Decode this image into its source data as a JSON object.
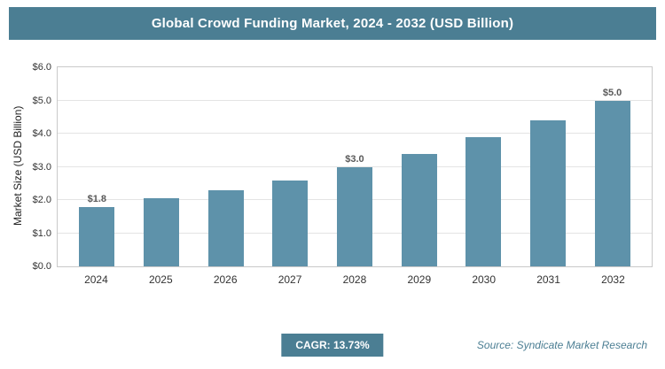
{
  "header": {
    "title": "Global Crowd Funding Market, 2024 - 2032 (USD Billion)"
  },
  "chart_data": {
    "type": "bar",
    "title": "Global Crowd Funding Market, 2024 - 2032 (USD Billion)",
    "ylabel": "Market Size (USD Billion)",
    "xlabel": "",
    "ymax": 6,
    "ytick_labels": [
      "$0.0",
      "$1.0",
      "$2.0",
      "$3.0",
      "$4.0",
      "$5.0",
      "$6.0"
    ],
    "categories": [
      "2024",
      "2025",
      "2026",
      "2027",
      "2028",
      "2029",
      "2030",
      "2031",
      "2032"
    ],
    "values": [
      1.8,
      2.05,
      2.3,
      2.6,
      3.0,
      3.4,
      3.9,
      4.4,
      5.0
    ],
    "point_labels": [
      "$1.8",
      null,
      null,
      null,
      "$3.0",
      null,
      null,
      null,
      "$5.0"
    ],
    "bar_color": "#5e92aa",
    "grid": true,
    "legend": false
  },
  "footer": {
    "cagr": "CAGR: 13.73%",
    "source": "Source: Syndicate Market Research"
  }
}
